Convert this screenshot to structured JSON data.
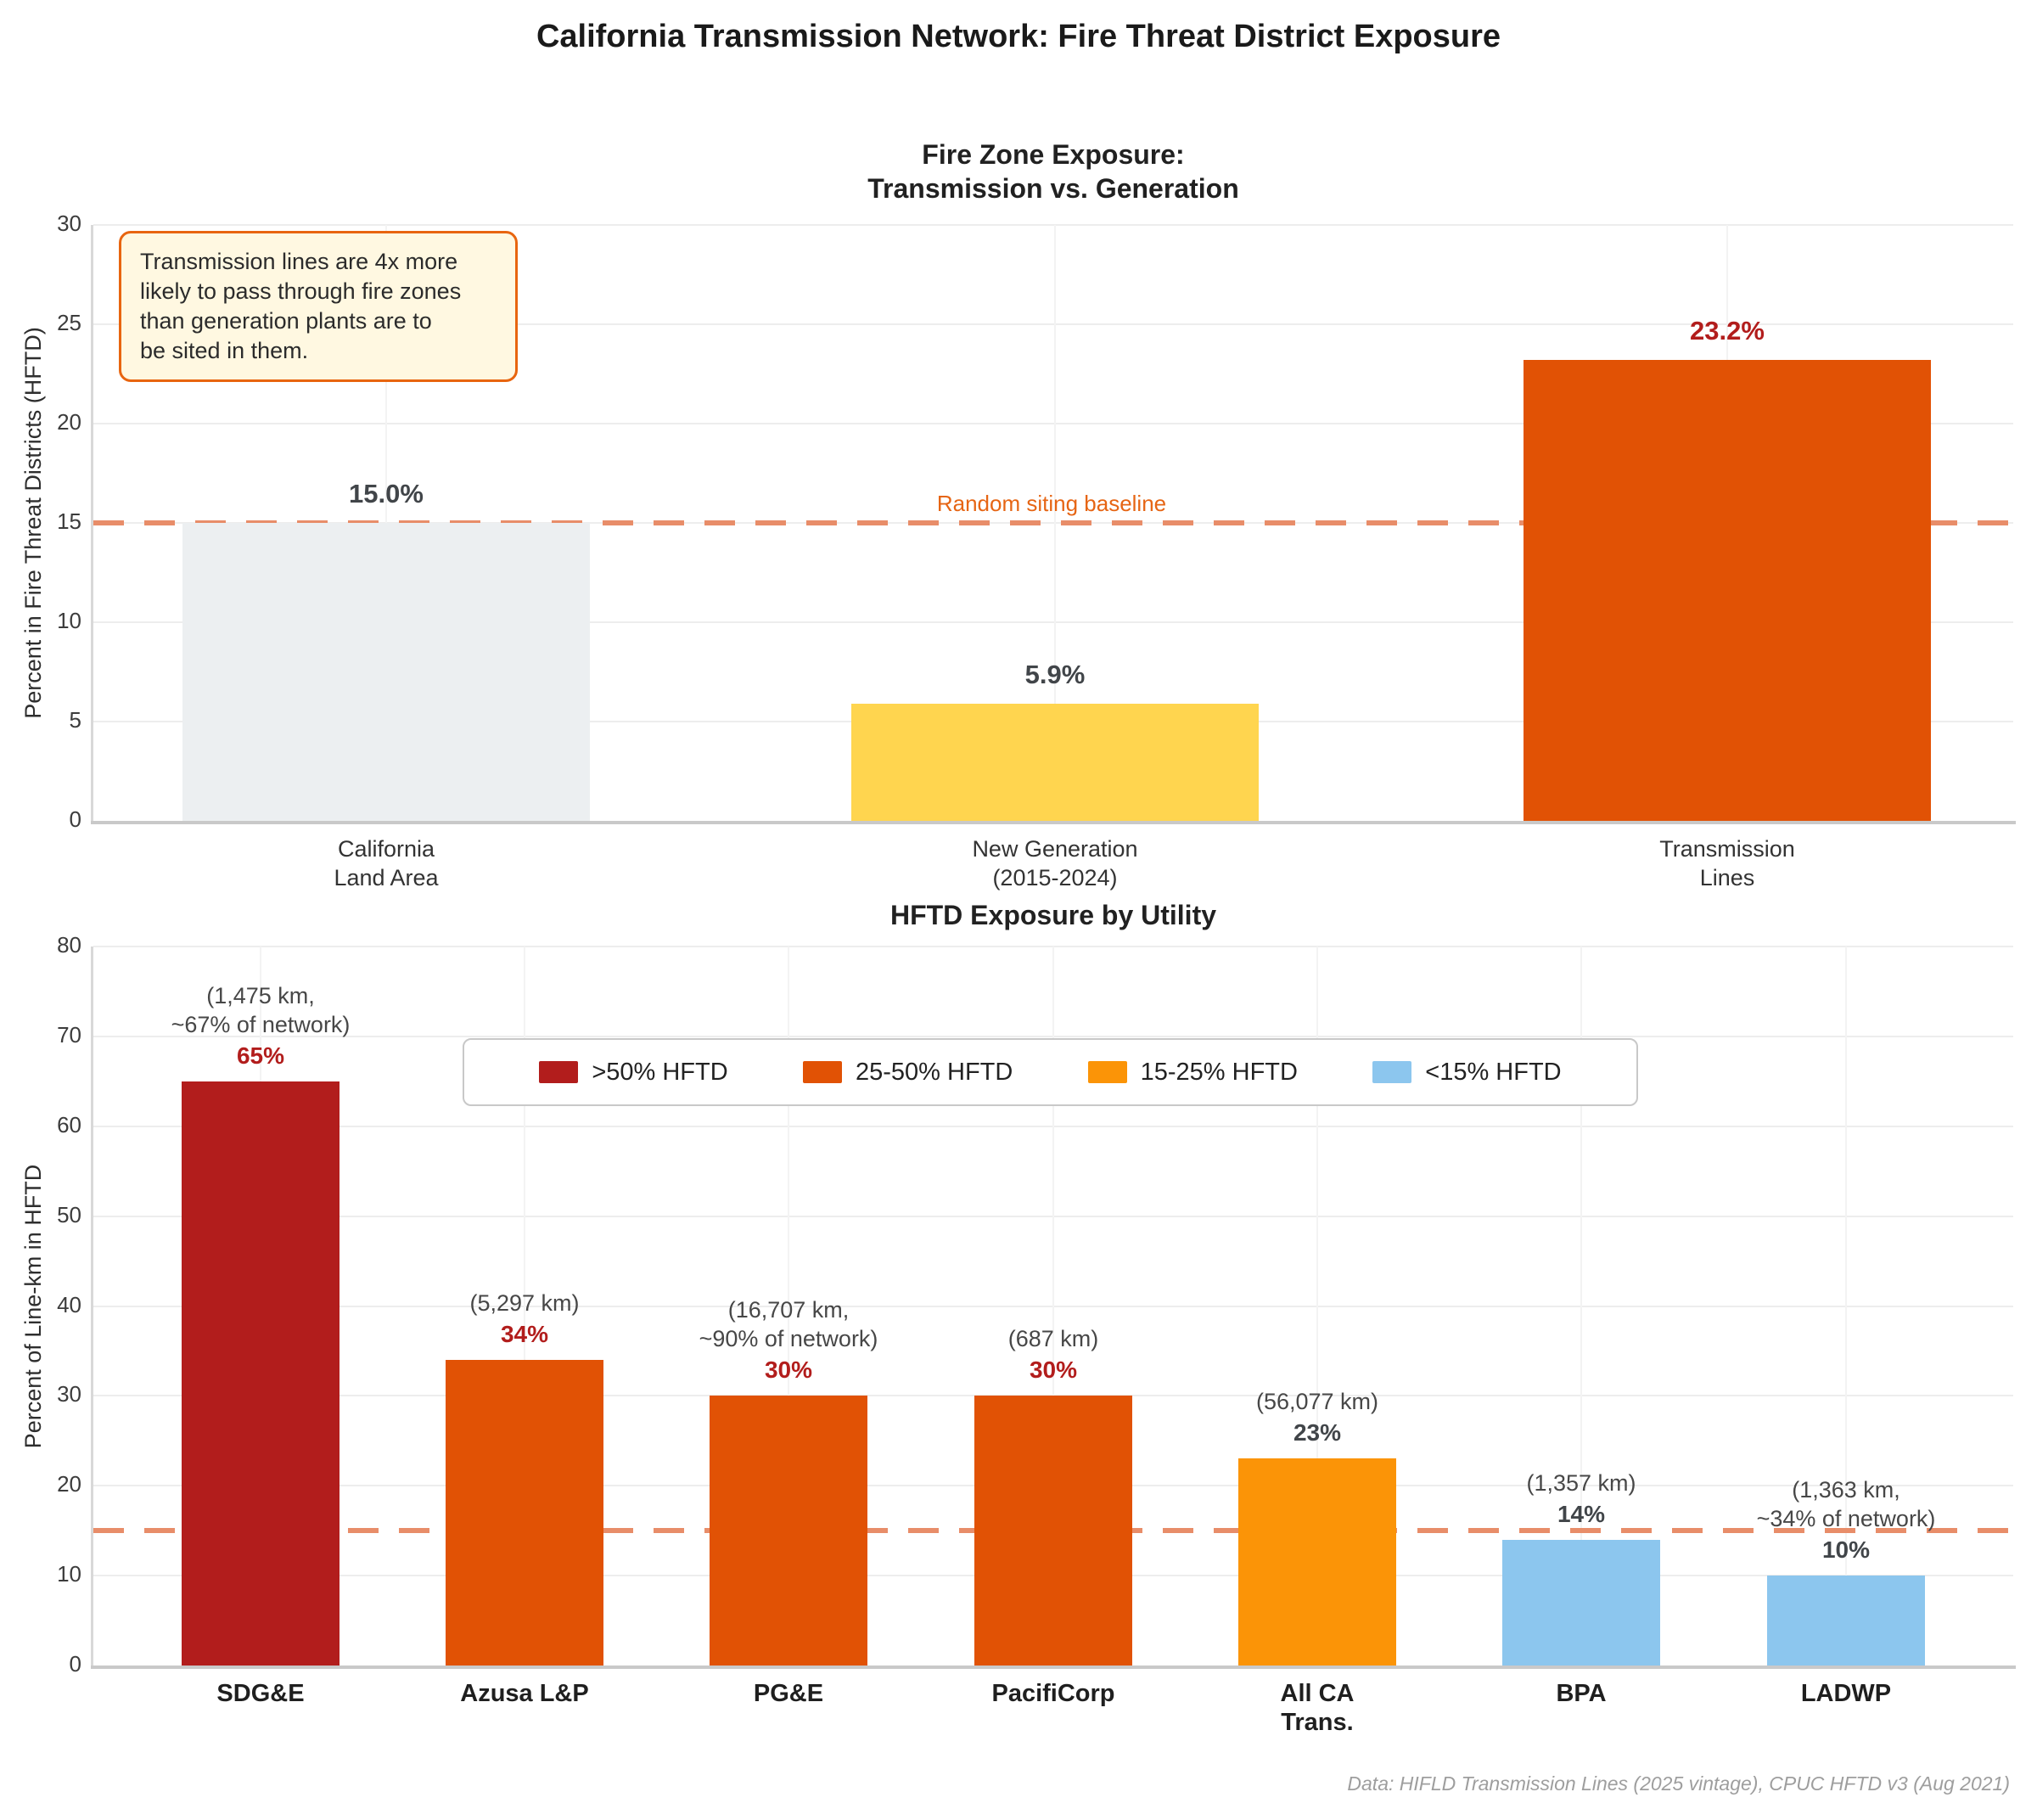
{
  "figure_title": "California Transmission Network: Fire Threat District Exposure",
  "source_note": "Data: HIFLD Transmission Lines (2025 vintage), CPUC HFTD v3 (Aug 2021)",
  "colors": {
    "baseline_dash": "#e88d69",
    "baseline_label": "#e66514",
    "annotation_bg": "#fff8e1",
    "annotation_border": "#e8650f",
    "value_label_red": "#b21d1c",
    "value_label_gray": "#414549",
    "km_label_gray": "#474747"
  },
  "chart_data": [
    {
      "type": "bar",
      "title": "Fire Zone Exposure:\nTransmission vs. Generation",
      "ylabel": "Percent in Fire Threat Districts (HFTD)",
      "ylim": [
        0,
        30
      ],
      "yticks": [
        0,
        5,
        10,
        15,
        20,
        25,
        30
      ],
      "grid": true,
      "legend_position": "none",
      "baseline": {
        "value": 15,
        "label": "Random siting baseline"
      },
      "annotation": "Transmission lines are 4x more\nlikely to pass through fire zones\nthan generation plants are to\nbe sited in them.",
      "categories": [
        "California\nLand Area",
        "New Generation\n(2015-2024)",
        "Transmission\nLines"
      ],
      "values": [
        15.0,
        5.9,
        23.2
      ],
      "value_labels": [
        "15.0%",
        "5.9%",
        "23.2%"
      ],
      "bar_colors": [
        "#eceff1",
        "#ffd54f",
        "#e15205"
      ],
      "value_label_colors": [
        "#414549",
        "#414549",
        "#b21d1c"
      ]
    },
    {
      "type": "bar",
      "title": "HFTD Exposure by Utility",
      "ylabel": "Percent of Line-km in HFTD",
      "ylim": [
        0,
        80
      ],
      "yticks": [
        0,
        10,
        20,
        30,
        40,
        50,
        60,
        70,
        80
      ],
      "grid": true,
      "legend_position": "upper-center",
      "baseline": {
        "value": 15
      },
      "legend": [
        {
          "label": ">50% HFTD",
          "color": "#b21d1c"
        },
        {
          "label": "25-50% HFTD",
          "color": "#e15205"
        },
        {
          "label": "15-25% HFTD",
          "color": "#fb9407"
        },
        {
          "label": "<15% HFTD",
          "color": "#8cc6ee"
        }
      ],
      "categories": [
        "SDG&E",
        "Azusa L&P",
        "PG&E",
        "PacifiCorp",
        "All CA\nTrans.",
        "BPA",
        "LADWP"
      ],
      "values": [
        65,
        34,
        30,
        30,
        23,
        14,
        10
      ],
      "pct_labels": [
        "65%",
        "34%",
        "30%",
        "30%",
        "23%",
        "14%",
        "10%"
      ],
      "km_labels": [
        "(1,475 km,\n~67% of network)",
        "(5,297 km)",
        "(16,707 km,\n~90% of network)",
        "(687 km)",
        "(56,077 km)",
        "(1,357 km)",
        "(1,363 km,\n~34% of network)"
      ],
      "bar_colors": [
        "#b21d1c",
        "#e15205",
        "#e15205",
        "#e15205",
        "#fb9407",
        "#8cc6ee",
        "#8cc6ee"
      ],
      "pct_label_colors": [
        "#b21d1c",
        "#b21d1c",
        "#b21d1c",
        "#b21d1c",
        "#414549",
        "#414549",
        "#414549"
      ]
    }
  ]
}
